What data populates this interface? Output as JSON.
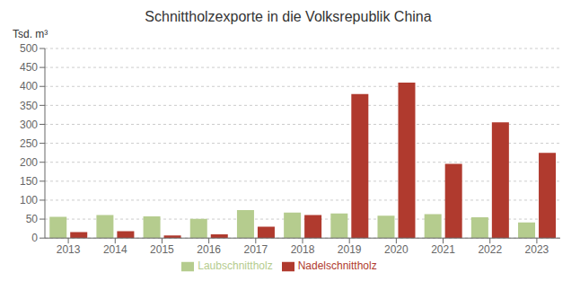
{
  "chart_data": {
    "type": "bar",
    "title": "Schnittholzexporte in die Volksrepublik China",
    "y_label": "Tsd. m³",
    "categories": [
      "2013",
      "2014",
      "2015",
      "2016",
      "2017",
      "2018",
      "2019",
      "2020",
      "2021",
      "2022",
      "2023"
    ],
    "series": [
      {
        "name": "Laubschnittholz",
        "color": "#b5cc8e",
        "values": [
          56,
          61,
          57,
          51,
          74,
          67,
          65,
          59,
          63,
          55,
          41
        ]
      },
      {
        "name": "Nadelschnittholz",
        "color": "#b03a2e",
        "values": [
          16,
          18,
          7,
          10,
          30,
          61,
          380,
          410,
          196,
          305,
          225
        ]
      }
    ],
    "ylim": [
      0,
      500
    ],
    "yticks": [
      0,
      50,
      100,
      150,
      200,
      250,
      300,
      350,
      400,
      450,
      500
    ],
    "grid": true,
    "legend": "bottom"
  }
}
